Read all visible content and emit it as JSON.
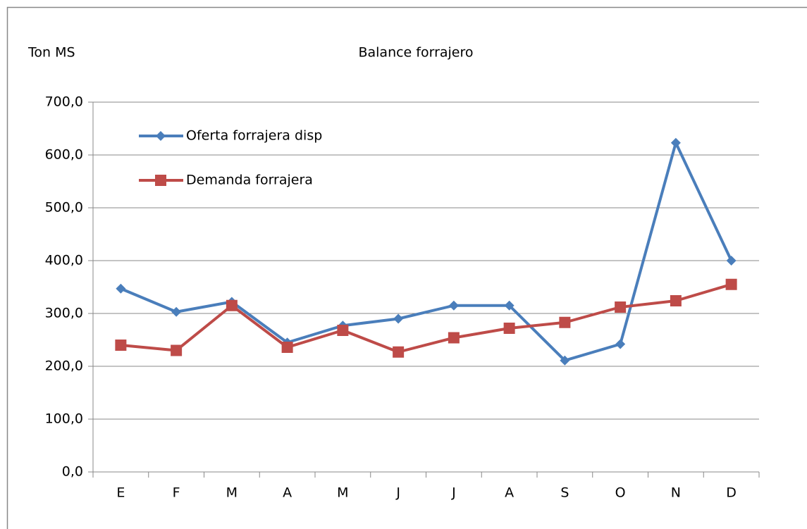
{
  "chart_data": {
    "type": "line",
    "title": "Balance forrajero",
    "y_label": "Ton MS",
    "categories": [
      "E",
      "F",
      "M",
      "A",
      "M",
      "J",
      "J",
      "A",
      "S",
      "O",
      "N",
      "D"
    ],
    "series": [
      {
        "name": "Oferta forrajera  disp",
        "color": "#4a7ebb",
        "marker": "diamond",
        "values": [
          347,
          303,
          322,
          245,
          277,
          290,
          315,
          315,
          211,
          242,
          623,
          400
        ]
      },
      {
        "name": "Demanda forrajera",
        "color": "#be4b48",
        "marker": "square",
        "values": [
          240,
          230,
          315,
          236,
          268,
          227,
          254,
          272,
          283,
          312,
          324,
          355
        ]
      }
    ],
    "ylim": [
      0,
      700
    ],
    "yticks": [
      {
        "value": 0,
        "label": "0,0"
      },
      {
        "value": 100,
        "label": "100,0"
      },
      {
        "value": 200,
        "label": "200,0"
      },
      {
        "value": 300,
        "label": "300,0"
      },
      {
        "value": 400,
        "label": "400,0"
      },
      {
        "value": 500,
        "label": "500,0"
      },
      {
        "value": 600,
        "label": "600,0"
      },
      {
        "value": 700,
        "label": "700,0"
      }
    ],
    "grid": true,
    "legend": "top-left"
  }
}
